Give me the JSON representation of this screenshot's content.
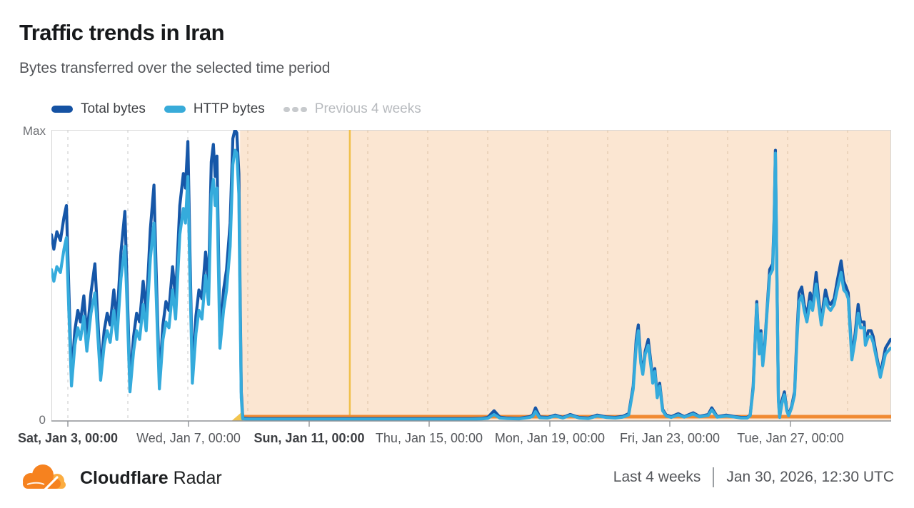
{
  "page": {
    "background": "#ffffff"
  },
  "header": {
    "title": "Traffic trends in Iran",
    "subtitle": "Bytes transferred over the selected time period"
  },
  "legend": {
    "items": [
      {
        "label": "Total bytes",
        "color": "#1552a3",
        "style": "solid",
        "disabled": false
      },
      {
        "label": "HTTP bytes",
        "color": "#38abd9",
        "style": "solid",
        "disabled": false
      },
      {
        "label": "Previous 4 weeks",
        "color": "#c7cacd",
        "style": "dotted",
        "disabled": true
      }
    ]
  },
  "footer": {
    "brand": "Cloudflare",
    "product": "Radar",
    "range_label": "Last 4 weeks",
    "timestamp": "Jan 30, 2026, 12:30 UTC"
  },
  "chart_data": {
    "type": "line",
    "title": "Traffic trends in Iran",
    "subtitle": "Bytes transferred over the selected time period",
    "y_axis": {
      "max_label": "Max",
      "zero_label": "0",
      "scale": "percent_of_max",
      "range": [
        0,
        100
      ]
    },
    "x_axis": {
      "total_days": 28,
      "ticks": [
        {
          "label": "Sat, Jan 3, 00:00",
          "day": 0.548,
          "bold": true
        },
        {
          "label": "Wed, Jan 7, 00:00",
          "day": 4.571,
          "bold": false
        },
        {
          "label": "Sun, Jan 11, 00:00",
          "day": 8.595,
          "bold": true
        },
        {
          "label": "Thu, Jan 15, 00:00",
          "day": 12.595,
          "bold": false
        },
        {
          "label": "Mon, Jan 19, 00:00",
          "day": 16.619,
          "bold": false
        },
        {
          "label": "Fri, Jan 23, 00:00",
          "day": 20.619,
          "bold": false
        },
        {
          "label": "Tue, Jan 27, 00:00",
          "day": 24.643,
          "bold": false
        }
      ],
      "gridline_first_day": 0.548,
      "gridline_step_days": 2,
      "gridline_count": 14
    },
    "colors": {
      "total": "#1657a8",
      "http": "#35abdc",
      "shade": "#fbe6d2",
      "shade_grid": "#e8cfb6",
      "grid": "#dcdcdc",
      "event_line": "#f0c04a",
      "outage_bar": "#f08a32",
      "marker": "#f2c54e",
      "axis": "#8f9296",
      "border": "#d6d6d6"
    },
    "annotations": {
      "shaded_region_days": [
        6.29,
        28
      ],
      "event_line_day": 9.95,
      "outage_bar_days": [
        6.29,
        28
      ],
      "start_marker_day": 6.29
    },
    "series_meta": [
      {
        "name": "Total bytes",
        "column": 1,
        "visible": true
      },
      {
        "name": "HTTP bytes",
        "column": 2,
        "visible": true
      },
      {
        "name": "Previous 4 weeks",
        "visible": false
      }
    ],
    "samples": {
      "columns": [
        "day_from_chart_start",
        "total_bytes_pct_of_max",
        "http_bytes_pct_of_max"
      ],
      "points": [
        [
          0.0,
          64,
          52
        ],
        [
          0.08,
          59,
          48
        ],
        [
          0.18,
          65,
          53
        ],
        [
          0.3,
          62,
          51
        ],
        [
          0.42,
          70,
          59
        ],
        [
          0.5,
          74,
          63
        ],
        [
          0.58,
          45,
          38
        ],
        [
          0.67,
          15,
          12
        ],
        [
          0.78,
          31,
          26
        ],
        [
          0.88,
          38,
          32
        ],
        [
          0.97,
          34,
          28
        ],
        [
          1.08,
          43,
          36
        ],
        [
          1.18,
          29,
          24
        ],
        [
          1.32,
          44,
          37
        ],
        [
          1.45,
          54,
          44
        ],
        [
          1.53,
          38,
          32
        ],
        [
          1.64,
          17,
          14
        ],
        [
          1.76,
          31,
          26
        ],
        [
          1.86,
          37,
          31
        ],
        [
          1.96,
          33,
          27
        ],
        [
          2.08,
          45,
          38
        ],
        [
          2.18,
          34,
          28
        ],
        [
          2.32,
          58,
          49
        ],
        [
          2.45,
          72,
          60
        ],
        [
          2.52,
          48,
          41
        ],
        [
          2.62,
          13,
          10
        ],
        [
          2.74,
          29,
          24
        ],
        [
          2.84,
          37,
          31
        ],
        [
          2.94,
          34,
          28
        ],
        [
          3.06,
          48,
          40
        ],
        [
          3.16,
          37,
          31
        ],
        [
          3.3,
          66,
          56
        ],
        [
          3.42,
          81,
          68
        ],
        [
          3.49,
          52,
          44
        ],
        [
          3.6,
          14,
          11
        ],
        [
          3.72,
          33,
          28
        ],
        [
          3.82,
          41,
          34
        ],
        [
          3.92,
          38,
          32
        ],
        [
          4.04,
          53,
          45
        ],
        [
          4.14,
          42,
          35
        ],
        [
          4.28,
          74,
          64
        ],
        [
          4.4,
          85,
          73
        ],
        [
          4.47,
          80,
          68
        ],
        [
          4.55,
          96,
          84
        ],
        [
          4.62,
          58,
          50
        ],
        [
          4.7,
          16,
          13
        ],
        [
          4.82,
          36,
          30
        ],
        [
          4.92,
          45,
          38
        ],
        [
          5.02,
          42,
          35
        ],
        [
          5.14,
          58,
          50
        ],
        [
          5.24,
          47,
          40
        ],
        [
          5.33,
          89,
          78
        ],
        [
          5.4,
          95,
          83
        ],
        [
          5.46,
          84,
          74
        ],
        [
          5.52,
          91,
          80
        ],
        [
          5.62,
          29,
          25
        ],
        [
          5.74,
          45,
          38
        ],
        [
          5.84,
          52,
          45
        ],
        [
          5.96,
          68,
          60
        ],
        [
          6.05,
          97,
          88
        ],
        [
          6.12,
          100,
          93
        ],
        [
          6.18,
          99,
          92
        ],
        [
          6.25,
          85,
          78
        ],
        [
          6.29,
          45,
          40
        ],
        [
          6.33,
          10,
          8
        ],
        [
          6.38,
          1,
          0.7
        ],
        [
          6.6,
          0.8,
          0.6
        ],
        [
          7.0,
          0.8,
          0.6
        ],
        [
          7.5,
          0.8,
          0.6
        ],
        [
          8.0,
          0.8,
          0.6
        ],
        [
          8.6,
          0.8,
          0.6
        ],
        [
          9.2,
          0.8,
          0.6
        ],
        [
          9.8,
          0.8,
          0.6
        ],
        [
          10.4,
          0.8,
          0.6
        ],
        [
          11.0,
          0.8,
          0.6
        ],
        [
          11.6,
          0.8,
          0.6
        ],
        [
          12.2,
          0.8,
          0.6
        ],
        [
          12.8,
          0.8,
          0.6
        ],
        [
          13.4,
          0.8,
          0.6
        ],
        [
          14.0,
          0.8,
          0.6
        ],
        [
          14.35,
          0.9,
          0.7
        ],
        [
          14.55,
          1.2,
          0.9
        ],
        [
          14.76,
          3.5,
          2.2
        ],
        [
          14.95,
          1.3,
          1.0
        ],
        [
          15.2,
          1.0,
          0.8
        ],
        [
          15.6,
          0.9,
          0.7
        ],
        [
          15.95,
          1.5,
          1.2
        ],
        [
          16.05,
          2.0,
          1.6
        ],
        [
          16.14,
          4.5,
          3.2
        ],
        [
          16.28,
          1.4,
          1.1
        ],
        [
          16.55,
          1.2,
          1.0
        ],
        [
          16.8,
          2.0,
          1.7
        ],
        [
          17.05,
          1.2,
          1.0
        ],
        [
          17.3,
          2.2,
          1.9
        ],
        [
          17.6,
          1.2,
          1.0
        ],
        [
          17.9,
          1.0,
          0.8
        ],
        [
          18.2,
          2.0,
          1.7
        ],
        [
          18.5,
          1.4,
          1.2
        ],
        [
          18.8,
          1.2,
          1.0
        ],
        [
          19.05,
          1.6,
          1.3
        ],
        [
          19.25,
          2.5,
          2.1
        ],
        [
          19.4,
          12,
          11
        ],
        [
          19.5,
          28,
          26
        ],
        [
          19.57,
          33,
          31
        ],
        [
          19.65,
          21,
          20
        ],
        [
          19.72,
          17,
          16
        ],
        [
          19.8,
          24,
          23
        ],
        [
          19.9,
          28,
          26
        ],
        [
          20.0,
          19,
          18
        ],
        [
          20.05,
          14,
          13
        ],
        [
          20.12,
          18,
          17
        ],
        [
          20.2,
          9,
          8
        ],
        [
          20.28,
          13,
          12
        ],
        [
          20.38,
          4,
          3.5
        ],
        [
          20.5,
          2,
          1.7
        ],
        [
          20.67,
          1.5,
          1.2
        ],
        [
          20.9,
          2.5,
          2.1
        ],
        [
          21.1,
          1.5,
          1.3
        ],
        [
          21.4,
          2.8,
          2.4
        ],
        [
          21.6,
          1.6,
          1.4
        ],
        [
          21.9,
          2.2,
          1.9
        ],
        [
          22.02,
          4.5,
          3.8
        ],
        [
          22.2,
          1.5,
          1.3
        ],
        [
          22.5,
          2.0,
          1.7
        ],
        [
          22.8,
          1.5,
          1.3
        ],
        [
          23.0,
          1.2,
          1.0
        ],
        [
          23.2,
          1.2,
          1.0
        ],
        [
          23.3,
          2,
          1.8
        ],
        [
          23.4,
          12,
          11
        ],
        [
          23.52,
          41,
          40
        ],
        [
          23.6,
          24,
          23
        ],
        [
          23.66,
          31,
          30
        ],
        [
          23.72,
          20,
          19
        ],
        [
          23.79,
          27,
          26
        ],
        [
          23.86,
          38,
          37
        ],
        [
          23.95,
          52,
          50
        ],
        [
          24.05,
          54,
          52
        ],
        [
          24.1,
          70,
          69
        ],
        [
          24.14,
          93,
          92
        ],
        [
          24.19,
          50,
          49
        ],
        [
          24.24,
          8,
          7
        ],
        [
          24.28,
          1.5,
          1.2
        ],
        [
          24.36,
          7,
          6
        ],
        [
          24.44,
          10,
          9
        ],
        [
          24.52,
          4,
          3.5
        ],
        [
          24.58,
          2,
          1.8
        ],
        [
          24.68,
          5,
          4.5
        ],
        [
          24.78,
          10,
          9
        ],
        [
          24.86,
          30,
          28
        ],
        [
          24.93,
          44,
          41
        ],
        [
          25.02,
          46,
          43
        ],
        [
          25.1,
          40,
          38
        ],
        [
          25.19,
          36,
          34
        ],
        [
          25.3,
          44,
          41
        ],
        [
          25.38,
          40,
          38
        ],
        [
          25.5,
          51,
          47
        ],
        [
          25.58,
          42,
          40
        ],
        [
          25.67,
          34,
          33
        ],
        [
          25.74,
          40,
          38
        ],
        [
          25.81,
          45,
          42
        ],
        [
          25.9,
          41,
          39
        ],
        [
          25.98,
          40,
          38
        ],
        [
          26.1,
          42,
          40
        ],
        [
          26.2,
          48,
          45
        ],
        [
          26.33,
          55,
          51
        ],
        [
          26.42,
          48,
          45
        ],
        [
          26.5,
          46,
          44
        ],
        [
          26.57,
          44,
          42
        ],
        [
          26.69,
          22,
          21
        ],
        [
          26.8,
          30,
          28
        ],
        [
          26.9,
          40,
          37
        ],
        [
          26.98,
          34,
          32
        ],
        [
          27.1,
          34,
          32
        ],
        [
          27.14,
          27,
          26
        ],
        [
          27.24,
          31,
          29
        ],
        [
          27.33,
          31,
          29
        ],
        [
          27.4,
          29,
          27
        ],
        [
          27.52,
          22,
          21
        ],
        [
          27.64,
          16,
          15
        ],
        [
          27.81,
          25,
          23
        ],
        [
          27.98,
          28,
          25
        ]
      ]
    }
  }
}
